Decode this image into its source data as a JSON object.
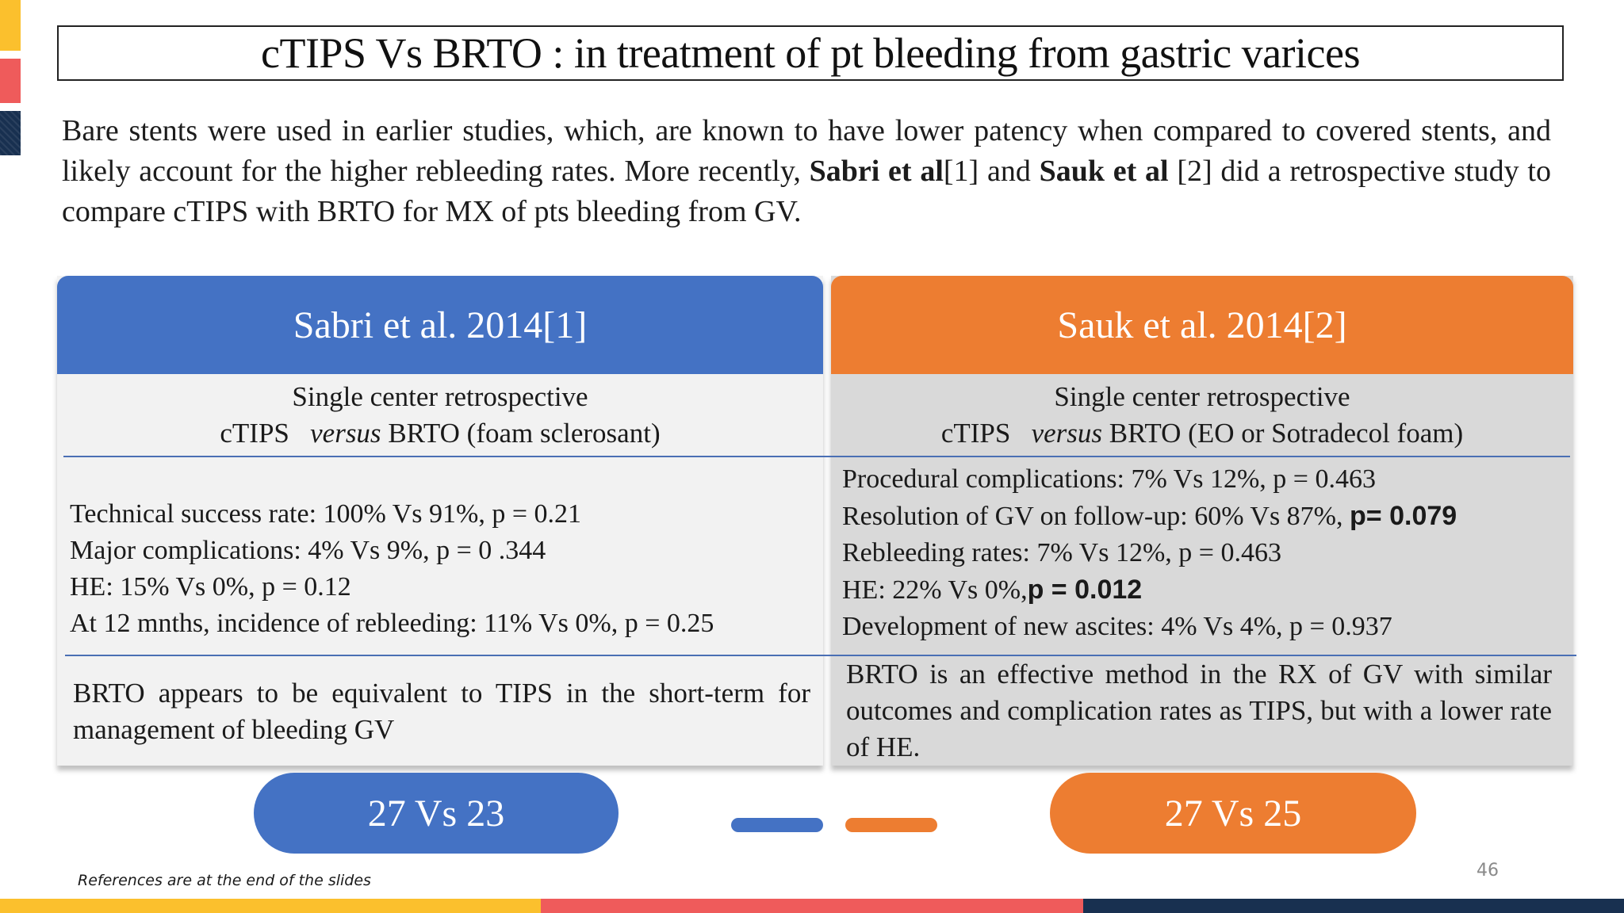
{
  "slide": {
    "title": "cTIPS Vs BRTO : in treatment of pt bleeding from gastric varices",
    "intro": {
      "part1": "Bare stents were used in earlier studies, which, are known to have lower patency when compared to covered stents, and likely account for the higher rebleeding rates. More recently, ",
      "sabri": "Sabri et al",
      "part2": "[1] and ",
      "sauk": "Sauk et al",
      "part3": " [2] did a retrospective study to compare cTIPS with BRTO for MX of pts bleeding from GV."
    },
    "left": {
      "header": "Sabri et al. 2014[1]",
      "design_line1": "Single center retrospective",
      "design_ctips": "cTIPS",
      "design_versus": "versus",
      "design_rest": "BRTO (foam sclerosant)",
      "results": [
        "Technical success rate: 100% Vs 91%, p = 0.21",
        "Major complications: 4% Vs 9%, p = 0 .344",
        "HE: 15% Vs 0%, p = 0.12",
        "At 12 mnths, incidence of rebleeding: 11% Vs 0%, p = 0.25"
      ],
      "conclusion": "BRTO appears to be equivalent to TIPS in the short-term for management of bleeding GV",
      "count": "27 Vs 23"
    },
    "right": {
      "header": "Sauk et al. 2014[2]",
      "design_line1": "Single center retrospective",
      "design_ctips": "cTIPS",
      "design_versus": "versus",
      "design_rest": "BRTO (EO or Sotradecol foam)",
      "results": [
        "Procedural complications: 7% Vs 12%, p = 0.463",
        "Resolution of GV on follow-up: 60% Vs 87%, ",
        "p= 0.079",
        "Rebleeding rates: 7% Vs 12%, p = 0.463",
        "HE: 22% Vs 0%,",
        "p = 0.012",
        "Development of new ascites: 4% Vs 4%, p = 0.937"
      ],
      "conclusion": "BRTO is an effective method in the RX of GV with similar outcomes and complication rates as TIPS, but with a lower rate of HE.",
      "count": "27 Vs 25"
    },
    "footnote": "References are at the end of the slides",
    "page_number": "46",
    "colors": {
      "blue": "#4472c4",
      "orange": "#ed7d31",
      "yellow": "#fbc02d",
      "red": "#ef5b5b",
      "navy": "#183050"
    }
  }
}
